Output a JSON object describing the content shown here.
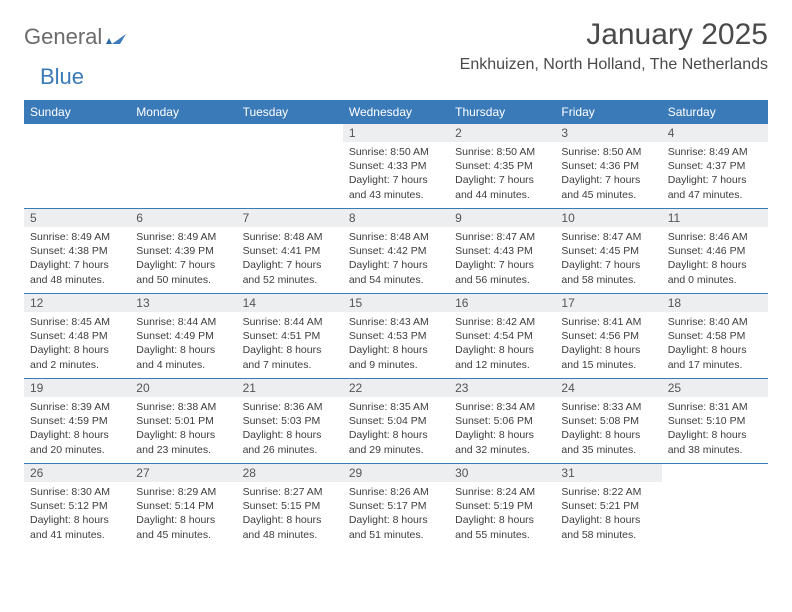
{
  "logo": {
    "text1": "General",
    "text2": "Blue",
    "tri_color": "#3a7ab8"
  },
  "title": "January 2025",
  "location": "Enkhuizen, North Holland, The Netherlands",
  "colors": {
    "header_bg": "#3a7ab8",
    "header_text": "#ffffff",
    "daynum_bg": "#eceef0",
    "text": "#3d3d3d",
    "rule": "#3a7ab8"
  },
  "day_labels": [
    "Sunday",
    "Monday",
    "Tuesday",
    "Wednesday",
    "Thursday",
    "Friday",
    "Saturday"
  ],
  "weeks": [
    [
      null,
      null,
      null,
      {
        "n": "1",
        "sr": "8:50 AM",
        "ss": "4:33 PM",
        "dl": "7 hours and 43 minutes."
      },
      {
        "n": "2",
        "sr": "8:50 AM",
        "ss": "4:35 PM",
        "dl": "7 hours and 44 minutes."
      },
      {
        "n": "3",
        "sr": "8:50 AM",
        "ss": "4:36 PM",
        "dl": "7 hours and 45 minutes."
      },
      {
        "n": "4",
        "sr": "8:49 AM",
        "ss": "4:37 PM",
        "dl": "7 hours and 47 minutes."
      }
    ],
    [
      {
        "n": "5",
        "sr": "8:49 AM",
        "ss": "4:38 PM",
        "dl": "7 hours and 48 minutes."
      },
      {
        "n": "6",
        "sr": "8:49 AM",
        "ss": "4:39 PM",
        "dl": "7 hours and 50 minutes."
      },
      {
        "n": "7",
        "sr": "8:48 AM",
        "ss": "4:41 PM",
        "dl": "7 hours and 52 minutes."
      },
      {
        "n": "8",
        "sr": "8:48 AM",
        "ss": "4:42 PM",
        "dl": "7 hours and 54 minutes."
      },
      {
        "n": "9",
        "sr": "8:47 AM",
        "ss": "4:43 PM",
        "dl": "7 hours and 56 minutes."
      },
      {
        "n": "10",
        "sr": "8:47 AM",
        "ss": "4:45 PM",
        "dl": "7 hours and 58 minutes."
      },
      {
        "n": "11",
        "sr": "8:46 AM",
        "ss": "4:46 PM",
        "dl": "8 hours and 0 minutes."
      }
    ],
    [
      {
        "n": "12",
        "sr": "8:45 AM",
        "ss": "4:48 PM",
        "dl": "8 hours and 2 minutes."
      },
      {
        "n": "13",
        "sr": "8:44 AM",
        "ss": "4:49 PM",
        "dl": "8 hours and 4 minutes."
      },
      {
        "n": "14",
        "sr": "8:44 AM",
        "ss": "4:51 PM",
        "dl": "8 hours and 7 minutes."
      },
      {
        "n": "15",
        "sr": "8:43 AM",
        "ss": "4:53 PM",
        "dl": "8 hours and 9 minutes."
      },
      {
        "n": "16",
        "sr": "8:42 AM",
        "ss": "4:54 PM",
        "dl": "8 hours and 12 minutes."
      },
      {
        "n": "17",
        "sr": "8:41 AM",
        "ss": "4:56 PM",
        "dl": "8 hours and 15 minutes."
      },
      {
        "n": "18",
        "sr": "8:40 AM",
        "ss": "4:58 PM",
        "dl": "8 hours and 17 minutes."
      }
    ],
    [
      {
        "n": "19",
        "sr": "8:39 AM",
        "ss": "4:59 PM",
        "dl": "8 hours and 20 minutes."
      },
      {
        "n": "20",
        "sr": "8:38 AM",
        "ss": "5:01 PM",
        "dl": "8 hours and 23 minutes."
      },
      {
        "n": "21",
        "sr": "8:36 AM",
        "ss": "5:03 PM",
        "dl": "8 hours and 26 minutes."
      },
      {
        "n": "22",
        "sr": "8:35 AM",
        "ss": "5:04 PM",
        "dl": "8 hours and 29 minutes."
      },
      {
        "n": "23",
        "sr": "8:34 AM",
        "ss": "5:06 PM",
        "dl": "8 hours and 32 minutes."
      },
      {
        "n": "24",
        "sr": "8:33 AM",
        "ss": "5:08 PM",
        "dl": "8 hours and 35 minutes."
      },
      {
        "n": "25",
        "sr": "8:31 AM",
        "ss": "5:10 PM",
        "dl": "8 hours and 38 minutes."
      }
    ],
    [
      {
        "n": "26",
        "sr": "8:30 AM",
        "ss": "5:12 PM",
        "dl": "8 hours and 41 minutes."
      },
      {
        "n": "27",
        "sr": "8:29 AM",
        "ss": "5:14 PM",
        "dl": "8 hours and 45 minutes."
      },
      {
        "n": "28",
        "sr": "8:27 AM",
        "ss": "5:15 PM",
        "dl": "8 hours and 48 minutes."
      },
      {
        "n": "29",
        "sr": "8:26 AM",
        "ss": "5:17 PM",
        "dl": "8 hours and 51 minutes."
      },
      {
        "n": "30",
        "sr": "8:24 AM",
        "ss": "5:19 PM",
        "dl": "8 hours and 55 minutes."
      },
      {
        "n": "31",
        "sr": "8:22 AM",
        "ss": "5:21 PM",
        "dl": "8 hours and 58 minutes."
      },
      null
    ]
  ],
  "labels": {
    "sunrise": "Sunrise:",
    "sunset": "Sunset:",
    "daylight": "Daylight:"
  }
}
